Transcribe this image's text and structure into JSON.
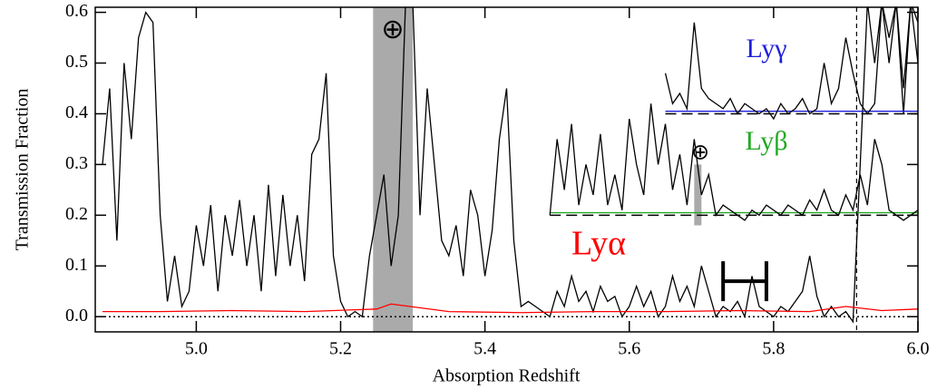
{
  "chart_data": {
    "type": "line",
    "xlabel": "Absorption Redshift",
    "ylabel": "Transmission Fraction",
    "xlim": [
      4.86,
      6.0
    ],
    "ylim": [
      -0.03,
      0.61
    ],
    "xticks": [
      {
        "value": 5.0,
        "label": "5.0"
      },
      5.2,
      5.4,
      5.6,
      5.8,
      {
        "value": 6.0,
        "label": "6.0"
      }
    ],
    "yticks": [
      {
        "value": 0.0,
        "label": "0.0"
      },
      0.1,
      0.2,
      0.3,
      0.4,
      0.5,
      0.6
    ],
    "series": [
      {
        "color": "#000000",
        "style": "solid",
        "x": [
          4.87,
          4.88,
          4.89,
          4.9,
          4.91,
          4.92,
          4.93,
          4.94,
          4.95,
          4.96,
          4.97,
          4.98,
          4.99,
          5.0,
          5.01,
          5.02,
          5.03,
          5.04,
          5.05,
          5.06,
          5.07,
          5.08,
          5.09,
          5.1,
          5.11,
          5.12,
          5.13,
          5.14,
          5.15,
          5.16,
          5.17,
          5.18,
          5.19,
          5.2,
          5.21,
          5.22,
          5.23,
          5.24,
          5.25,
          5.26,
          5.27,
          5.28,
          5.29,
          5.3,
          5.31,
          5.32,
          5.33,
          5.34,
          5.35,
          5.36,
          5.37,
          5.38,
          5.39,
          5.4,
          5.41,
          5.42,
          5.43,
          5.44,
          5.45,
          5.46,
          5.47,
          5.48,
          5.49,
          5.5,
          5.51,
          5.52,
          5.53,
          5.54,
          5.55,
          5.56,
          5.57,
          5.58,
          5.59,
          5.6,
          5.61,
          5.62,
          5.63,
          5.64,
          5.65,
          5.66,
          5.67,
          5.68,
          5.69,
          5.7,
          5.71,
          5.72,
          5.73,
          5.74,
          5.75,
          5.76,
          5.77,
          5.78,
          5.79,
          5.8,
          5.81,
          5.82,
          5.83,
          5.84,
          5.85,
          5.86,
          5.87,
          5.88,
          5.89,
          5.9,
          5.91,
          5.92,
          5.93,
          5.94,
          5.95,
          5.96,
          5.97,
          5.98,
          5.99,
          6.0
        ],
        "values": [
          0.3,
          0.45,
          0.15,
          0.5,
          0.35,
          0.55,
          0.6,
          0.58,
          0.2,
          0.03,
          0.12,
          0.02,
          0.05,
          0.18,
          0.1,
          0.22,
          0.05,
          0.2,
          0.12,
          0.23,
          0.1,
          0.2,
          0.05,
          0.26,
          0.08,
          0.24,
          0.1,
          0.2,
          0.07,
          0.32,
          0.35,
          0.48,
          0.12,
          0.03,
          0.0,
          0.01,
          0.0,
          0.12,
          0.2,
          0.28,
          0.1,
          0.2,
          0.62,
          0.62,
          0.2,
          0.45,
          0.3,
          0.15,
          0.12,
          0.18,
          0.08,
          0.25,
          0.2,
          0.08,
          0.17,
          0.35,
          0.45,
          0.15,
          0.02,
          0.03,
          0.02,
          0.01,
          0.0,
          0.05,
          0.02,
          0.08,
          0.03,
          0.05,
          0.01,
          0.06,
          0.03,
          0.04,
          0.0,
          0.02,
          0.06,
          0.02,
          0.05,
          0.0,
          0.02,
          0.08,
          0.03,
          0.06,
          0.02,
          0.1,
          0.05,
          0.0,
          0.02,
          0.01,
          0.03,
          0.0,
          0.08,
          0.02,
          0.01,
          0.0,
          0.02,
          0.01,
          0.03,
          0.05,
          0.12,
          0.04,
          0.0,
          0.02,
          0.0,
          0.01,
          -0.01,
          0.3,
          0.62,
          0.5,
          0.62,
          0.55,
          0.62,
          0.4,
          0.62,
          0.58
        ]
      },
      {
        "color": "#ff0000",
        "style": "solid",
        "x": [
          4.87,
          4.95,
          5.05,
          5.15,
          5.25,
          5.27,
          5.35,
          5.45,
          5.55,
          5.65,
          5.75,
          5.85,
          5.9,
          5.95,
          6.0
        ],
        "values": [
          0.01,
          0.01,
          0.012,
          0.01,
          0.015,
          0.025,
          0.01,
          0.008,
          0.01,
          0.01,
          0.012,
          0.01,
          0.02,
          0.012,
          0.015
        ]
      },
      {
        "color": "#000000",
        "style": "dotted",
        "x": [
          4.86,
          6.0
        ],
        "values": [
          0.0,
          0.0
        ]
      },
      {
        "color": "#000000",
        "style": "dashed",
        "x": [
          5.49,
          6.0
        ],
        "values": [
          0.2,
          0.2
        ]
      },
      {
        "color": "#22aa22",
        "style": "solid",
        "x": [
          5.49,
          6.0
        ],
        "values": [
          0.205,
          0.205
        ]
      },
      {
        "color": "#000000",
        "style": "solid",
        "x": [
          5.49,
          5.5,
          5.51,
          5.52,
          5.53,
          5.54,
          5.55,
          5.56,
          5.57,
          5.58,
          5.59,
          5.6,
          5.61,
          5.62,
          5.63,
          5.64,
          5.65,
          5.66,
          5.67,
          5.68,
          5.69,
          5.7,
          5.71,
          5.72,
          5.73,
          5.74,
          5.75,
          5.76,
          5.77,
          5.78,
          5.79,
          5.8,
          5.81,
          5.82,
          5.83,
          5.84,
          5.85,
          5.86,
          5.87,
          5.88,
          5.89,
          5.9,
          5.91,
          5.92,
          5.93,
          5.94,
          5.95,
          5.96,
          5.97,
          5.98,
          5.99,
          6.0
        ],
        "values": [
          0.2,
          0.35,
          0.25,
          0.38,
          0.22,
          0.3,
          0.24,
          0.36,
          0.22,
          0.28,
          0.21,
          0.39,
          0.3,
          0.24,
          0.42,
          0.3,
          0.38,
          0.25,
          0.32,
          0.22,
          0.35,
          0.24,
          0.28,
          0.2,
          0.22,
          0.21,
          0.2,
          0.19,
          0.21,
          0.2,
          0.22,
          0.21,
          0.2,
          0.22,
          0.21,
          0.2,
          0.23,
          0.21,
          0.25,
          0.21,
          0.2,
          0.24,
          0.21,
          0.28,
          0.22,
          0.35,
          0.3,
          0.21,
          0.2,
          0.19,
          0.2,
          0.21
        ]
      },
      {
        "color": "#000000",
        "style": "dashed",
        "x": [
          5.65,
          6.0
        ],
        "values": [
          0.4,
          0.4
        ]
      },
      {
        "color": "#1f1fdd",
        "style": "solid",
        "x": [
          5.65,
          6.0
        ],
        "values": [
          0.405,
          0.405
        ]
      },
      {
        "color": "#000000",
        "style": "solid",
        "x": [
          5.65,
          5.66,
          5.67,
          5.68,
          5.69,
          5.7,
          5.71,
          5.72,
          5.73,
          5.74,
          5.75,
          5.76,
          5.77,
          5.78,
          5.79,
          5.8,
          5.81,
          5.82,
          5.83,
          5.84,
          5.85,
          5.86,
          5.87,
          5.88,
          5.89,
          5.9,
          5.91,
          5.92,
          5.93,
          5.94,
          5.95,
          5.96,
          5.97,
          5.98,
          5.99,
          6.0
        ],
        "values": [
          0.48,
          0.42,
          0.44,
          0.41,
          0.58,
          0.45,
          0.43,
          0.42,
          0.41,
          0.43,
          0.4,
          0.42,
          0.41,
          0.4,
          0.41,
          0.39,
          0.42,
          0.4,
          0.41,
          0.43,
          0.4,
          0.41,
          0.5,
          0.42,
          0.45,
          0.55,
          0.48,
          0.42,
          0.4,
          0.42,
          0.62,
          0.5,
          0.62,
          0.45,
          0.62,
          0.5
        ]
      }
    ],
    "shaded": [
      {
        "x": [
          5.245,
          5.3
        ],
        "y": [
          -0.03,
          0.61
        ],
        "color": "#aaaaaa"
      },
      {
        "x": [
          5.69,
          5.7
        ],
        "y": [
          0.18,
          0.3
        ],
        "color": "#aaaaaa"
      }
    ],
    "vline": 5.915,
    "error_bar": {
      "x": [
        5.73,
        5.79
      ],
      "y": 0.07
    },
    "annotations": [
      {
        "text": "Lyα",
        "color": "#ff0000"
      },
      {
        "text": "Lyβ",
        "color": "#22aa22"
      },
      {
        "text": "Lyγ",
        "color": "#1f1fdd"
      },
      {
        "text": "⊕",
        "color": "#000000"
      },
      {
        "text": "⊕",
        "color": "#000000"
      }
    ]
  }
}
